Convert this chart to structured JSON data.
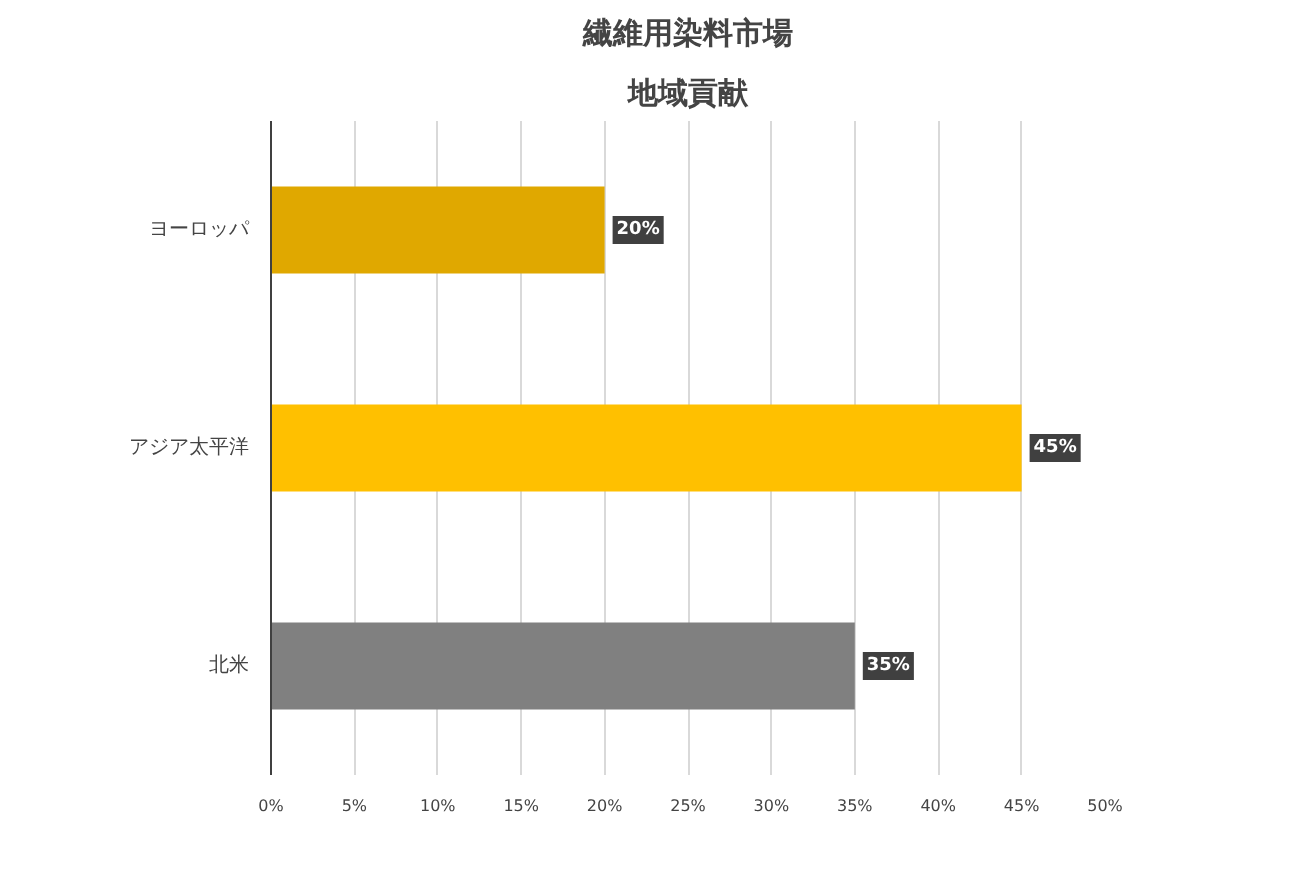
{
  "chart_data": {
    "type": "bar",
    "orientation": "horizontal",
    "title": "繊維用染料市場",
    "subtitle": "地域貢献",
    "categories": [
      "ヨーロッパ",
      "アジア太平洋",
      "北米"
    ],
    "values": [
      20,
      45,
      35
    ],
    "colors": [
      "#e0a800",
      "#ffc000",
      "#808080"
    ],
    "value_labels": [
      "20%",
      "45%",
      "35%"
    ],
    "xlim": [
      0,
      50
    ],
    "xticks": [
      {
        "value": 0,
        "label": "0%"
      },
      {
        "value": 5,
        "label": "5%"
      },
      {
        "value": 10,
        "label": "10%"
      },
      {
        "value": 15,
        "label": "15%"
      },
      {
        "value": 20,
        "label": "20%"
      },
      {
        "value": 25,
        "label": "25%"
      },
      {
        "value": 30,
        "label": "30%"
      },
      {
        "value": 35,
        "label": "35%"
      },
      {
        "value": 40,
        "label": "40%"
      },
      {
        "value": 45,
        "label": "45%"
      },
      {
        "value": 50,
        "label": "50%"
      }
    ],
    "grid": "x"
  }
}
